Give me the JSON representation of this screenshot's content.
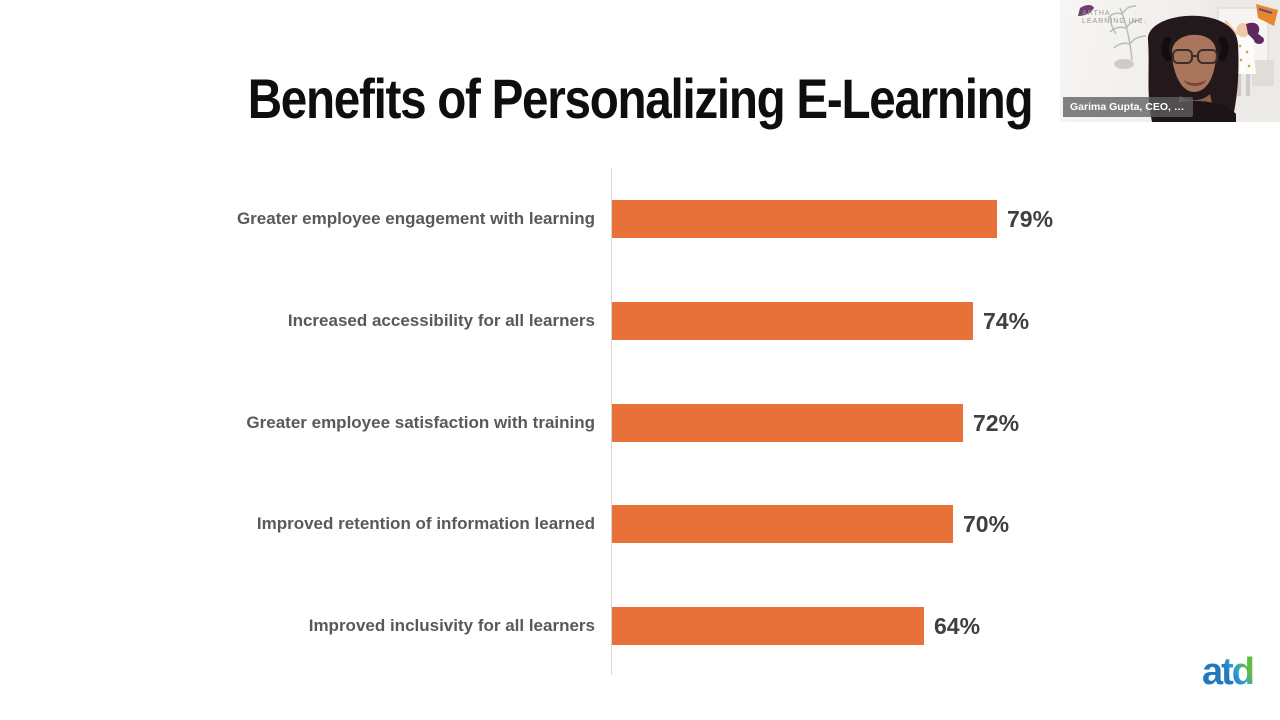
{
  "slide": {
    "title": "Benefits of Personalizing E-Learning"
  },
  "chart_data": {
    "type": "bar",
    "orientation": "horizontal",
    "title": "Benefits of Personalizing E-Learning",
    "categories": [
      "Greater employee engagement with learning",
      "Increased accessibility for all learners",
      "Greater employee satisfaction with training",
      "Improved retention of information learned",
      "Improved inclusivity for all learners"
    ],
    "values": [
      79,
      74,
      72,
      70,
      64
    ],
    "value_labels": [
      "79%",
      "74%",
      "72%",
      "70%",
      "64%"
    ],
    "xlabel": "",
    "ylabel": "",
    "xlim": [
      0,
      100
    ],
    "grid": false,
    "legend": false,
    "bar_color": "#e8713a",
    "category_label_color": "#595959",
    "value_label_color": "#3f3f3f",
    "axis_line_color": "#d9d9d9"
  },
  "webcam": {
    "name_label": "Garima Gupta, CEO, …",
    "wall_logo_line1": "ARTHA",
    "wall_logo_line2": "LEARNING INC."
  },
  "footer": {
    "brand_logo_text": "atd",
    "brand_blue": "#2277bd",
    "brand_green": "#62bb46"
  }
}
